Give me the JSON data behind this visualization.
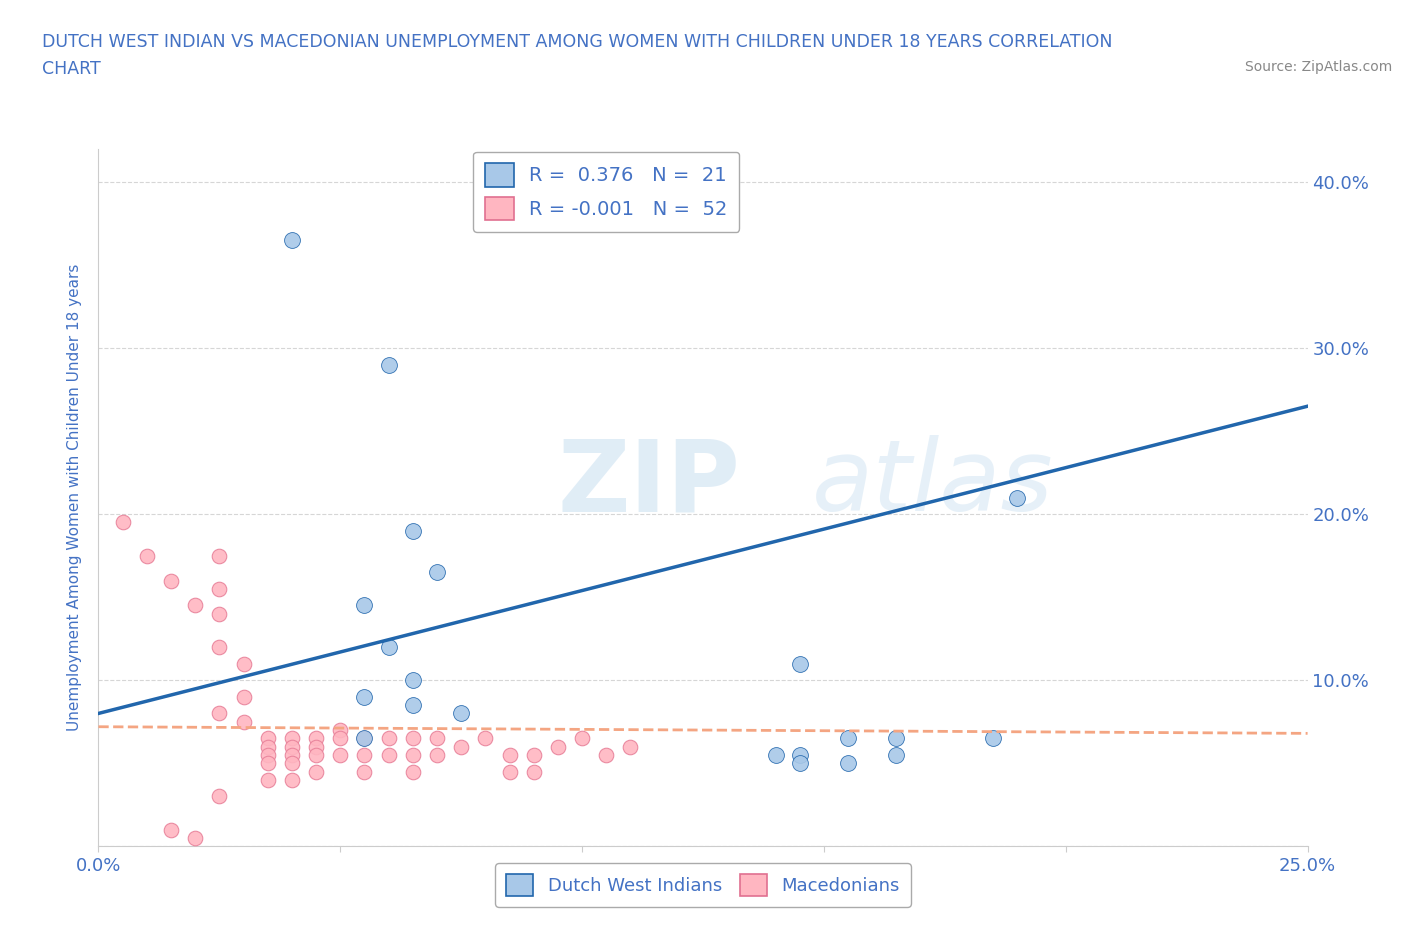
{
  "title_line1": "DUTCH WEST INDIAN VS MACEDONIAN UNEMPLOYMENT AMONG WOMEN WITH CHILDREN UNDER 18 YEARS CORRELATION",
  "title_line2": "CHART",
  "source": "Source: ZipAtlas.com",
  "ylabel": "Unemployment Among Women with Children Under 18 years",
  "watermark_zip": "ZIP",
  "watermark_atlas": "atlas",
  "xlim": [
    0.0,
    0.25
  ],
  "ylim": [
    0.0,
    0.42
  ],
  "blue_R": "0.376",
  "blue_N": "21",
  "pink_R": "-0.001",
  "pink_N": "52",
  "blue_scatter_color": "#a8c8e8",
  "pink_scatter_color": "#ffb6c1",
  "trendline_blue_color": "#2166ac",
  "trendline_pink_color": "#f4a582",
  "legend_blue_label": "Dutch West Indians",
  "legend_pink_label": "Macedonians",
  "blue_points_x": [
    0.04,
    0.06,
    0.065,
    0.07,
    0.055,
    0.06,
    0.065,
    0.055,
    0.065,
    0.075,
    0.055,
    0.145,
    0.155,
    0.165,
    0.185,
    0.19,
    0.145,
    0.14,
    0.145,
    0.155,
    0.165
  ],
  "blue_points_y": [
    0.365,
    0.29,
    0.19,
    0.165,
    0.145,
    0.12,
    0.1,
    0.09,
    0.085,
    0.08,
    0.065,
    0.11,
    0.065,
    0.065,
    0.065,
    0.21,
    0.055,
    0.055,
    0.05,
    0.05,
    0.055
  ],
  "pink_points_x": [
    0.005,
    0.01,
    0.015,
    0.015,
    0.02,
    0.02,
    0.025,
    0.025,
    0.025,
    0.025,
    0.03,
    0.03,
    0.03,
    0.035,
    0.035,
    0.035,
    0.035,
    0.035,
    0.04,
    0.04,
    0.04,
    0.04,
    0.04,
    0.045,
    0.045,
    0.045,
    0.045,
    0.05,
    0.05,
    0.05,
    0.055,
    0.055,
    0.055,
    0.06,
    0.06,
    0.065,
    0.065,
    0.065,
    0.07,
    0.07,
    0.075,
    0.08,
    0.085,
    0.085,
    0.09,
    0.09,
    0.095,
    0.1,
    0.105,
    0.11,
    0.025,
    0.025
  ],
  "pink_points_y": [
    0.195,
    0.175,
    0.16,
    0.01,
    0.145,
    0.005,
    0.14,
    0.12,
    0.08,
    0.03,
    0.11,
    0.09,
    0.075,
    0.065,
    0.06,
    0.055,
    0.05,
    0.04,
    0.065,
    0.06,
    0.055,
    0.05,
    0.04,
    0.065,
    0.06,
    0.055,
    0.045,
    0.07,
    0.065,
    0.055,
    0.065,
    0.055,
    0.045,
    0.065,
    0.055,
    0.065,
    0.055,
    0.045,
    0.065,
    0.055,
    0.06,
    0.065,
    0.055,
    0.045,
    0.055,
    0.045,
    0.06,
    0.065,
    0.055,
    0.06,
    0.175,
    0.155
  ],
  "blue_trend_x": [
    0.0,
    0.25
  ],
  "blue_trend_y": [
    0.08,
    0.265
  ],
  "pink_trend_x": [
    0.0,
    0.25
  ],
  "pink_trend_y": [
    0.072,
    0.068
  ],
  "grid_color": "#cccccc",
  "bg_color": "#ffffff",
  "title_color": "#4472c4",
  "font_color": "#4472c4"
}
